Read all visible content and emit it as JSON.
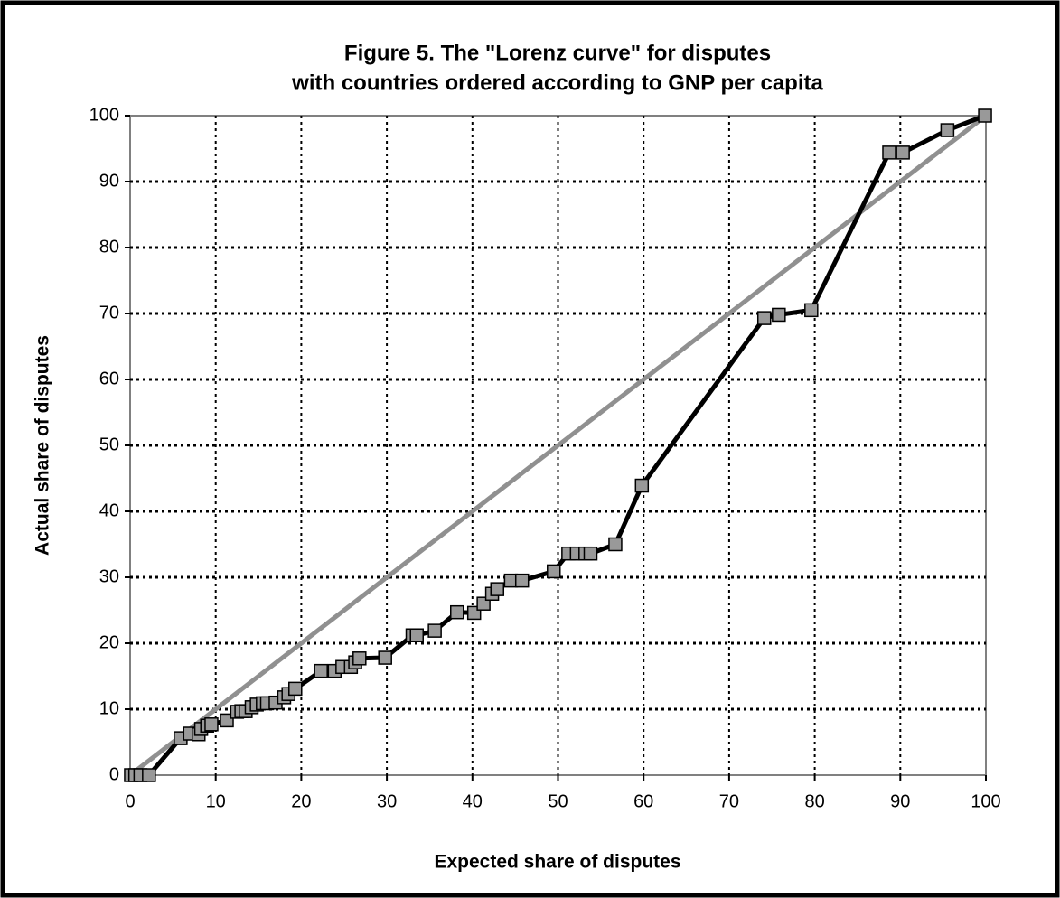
{
  "chart_data": {
    "type": "line",
    "title": "Figure 5.  The \"Lorenz curve\" for disputes",
    "subtitle": "with countries ordered according to GNP per capita",
    "x_label": "Expected share of disputes",
    "y_label": "Actual share of disputes",
    "xlim": [
      0,
      100
    ],
    "ylim": [
      0,
      100
    ],
    "xticks": [
      0,
      10,
      20,
      30,
      40,
      50,
      60,
      70,
      80,
      90,
      100
    ],
    "yticks": [
      0,
      10,
      20,
      30,
      40,
      50,
      60,
      70,
      80,
      90,
      100
    ],
    "grid": true,
    "series": [
      {
        "color": "#909090",
        "markers": false,
        "x": [
          0,
          100
        ],
        "values": [
          0,
          100
        ]
      },
      {
        "color": "#000000",
        "markers": true,
        "marker_color": "#999999",
        "x": [
          0.1,
          0.6,
          1.2,
          2.2,
          5.9,
          7,
          8,
          8.3,
          9,
          9.5,
          11.3,
          12.5,
          13,
          13.5,
          14.2,
          14.8,
          15.5,
          16,
          17,
          18,
          18.5,
          19.3,
          22.3,
          23.9,
          24.8,
          25.8,
          26.3,
          26.8,
          29.8,
          33,
          33.5,
          35.6,
          38.2,
          40.2,
          41.3,
          42.3,
          42.9,
          44.5,
          45.8,
          49.5,
          51.2,
          52.2,
          53.2,
          53.8,
          56.7,
          59.8,
          74.1,
          75.8,
          79.6,
          88.7,
          90.3,
          95.5,
          99.9
        ],
        "values": [
          0,
          0,
          0,
          0,
          5.6,
          6.3,
          6.2,
          7,
          7.5,
          7.7,
          8.3,
          9.6,
          9.7,
          9.7,
          10.3,
          10.7,
          10.9,
          10.9,
          11,
          11.8,
          12.3,
          13.1,
          15.8,
          15.8,
          16.4,
          16.4,
          17.1,
          17.7,
          17.8,
          21.2,
          21.2,
          21.9,
          24.7,
          24.6,
          26,
          27.5,
          28.2,
          29.5,
          29.5,
          30.9,
          33.6,
          33.6,
          33.6,
          33.6,
          35,
          43.9,
          69.3,
          69.8,
          70.5,
          94.4,
          94.4,
          97.8,
          100
        ]
      }
    ]
  }
}
